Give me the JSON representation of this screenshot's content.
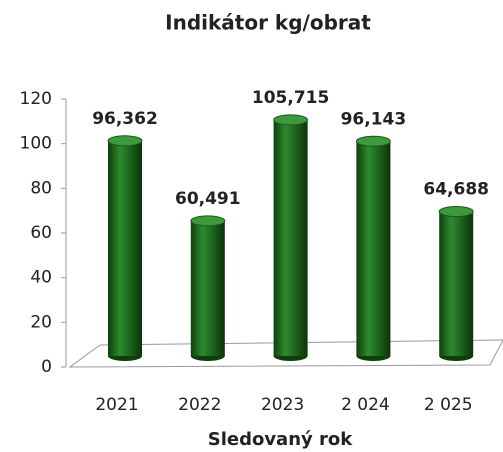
{
  "chart_data": {
    "type": "bar",
    "title": "Indikátor kg/obrat",
    "x_label": "Sledovaný rok",
    "categories": [
      "2021",
      "2022",
      "2023",
      "2 024",
      "2 025"
    ],
    "values": [
      96.362,
      60.491,
      105.715,
      96.143,
      64.688
    ],
    "value_labels": [
      "96,362",
      "60,491",
      "105,715",
      "96,143",
      "64,688"
    ],
    "color": "#1f6b1f",
    "ylim": [
      0,
      120
    ],
    "yticks": [
      0,
      20,
      40,
      60,
      80,
      100,
      120
    ],
    "grid": false
  }
}
